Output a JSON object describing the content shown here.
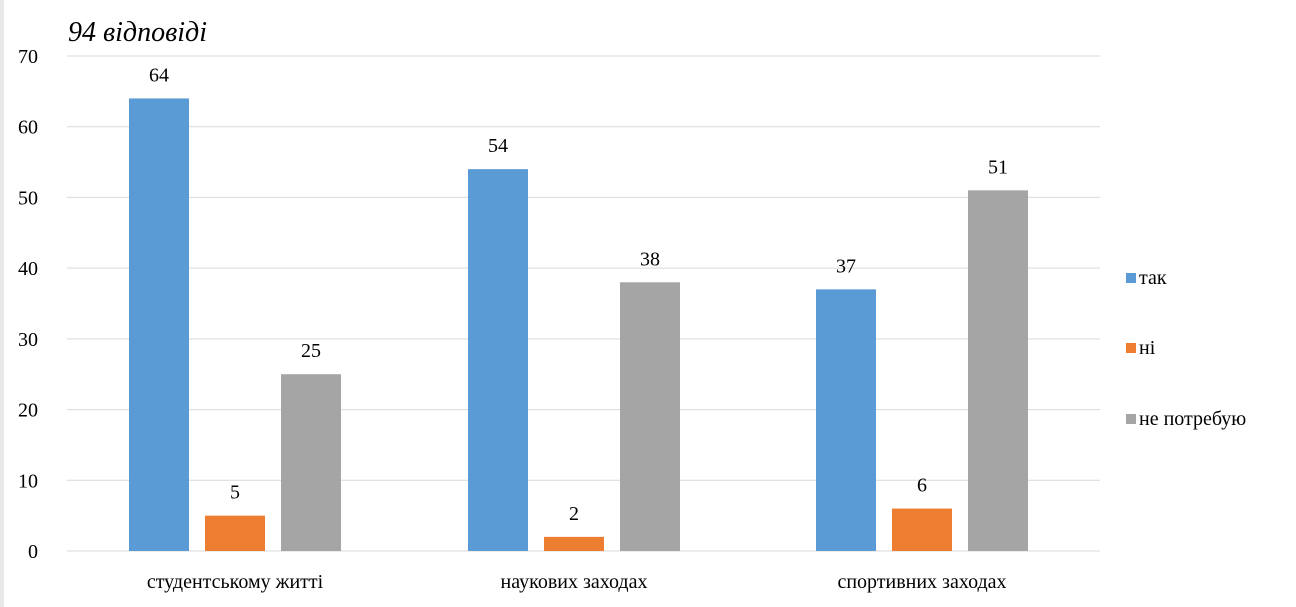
{
  "chart_data": {
    "type": "bar",
    "subtitle": "94 відповіді",
    "categories": [
      "студентському житті",
      "наукових заходах",
      "спортивних заходах"
    ],
    "series": [
      {
        "name": "так",
        "color": "#5b9bd5",
        "values": [
          64,
          54,
          37
        ]
      },
      {
        "name": "ні",
        "color": "#ed7d31",
        "values": [
          5,
          2,
          6
        ]
      },
      {
        "name": "не потребую",
        "color": "#a5a5a5",
        "values": [
          25,
          38,
          51
        ]
      }
    ],
    "ylim": [
      0,
      70
    ],
    "yticks": [
      0,
      10,
      20,
      30,
      40,
      50,
      60,
      70
    ],
    "grid": true,
    "legend_position": "right",
    "xlabel": "",
    "ylabel": ""
  }
}
